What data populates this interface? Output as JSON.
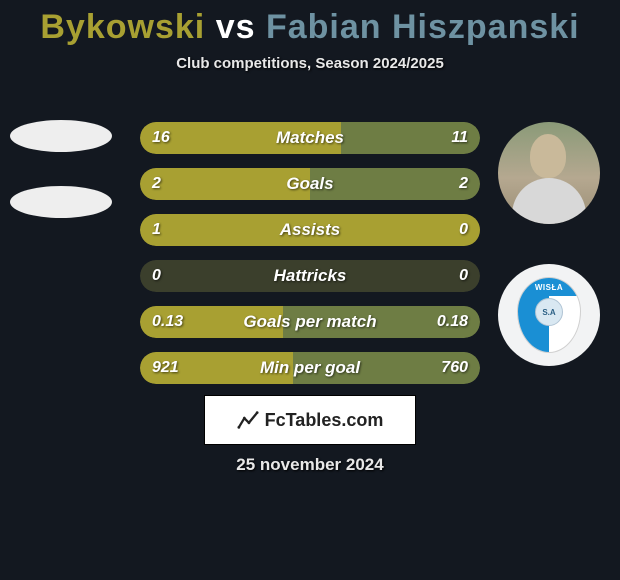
{
  "title": {
    "player1": "Bykowski",
    "vs": "vs",
    "player2": "Fabian Hiszpanski",
    "color_player1": "#a8a032",
    "color_player2": "#6e92a2"
  },
  "subtitle": "Club competitions, Season 2024/2025",
  "bars": {
    "bg_color_neutral": "#3b3f2c",
    "fill_left_color": "#a8a032",
    "fill_right_color": "#6e7d44",
    "rows": [
      {
        "label": "Matches",
        "left": "16",
        "right": "11",
        "left_pct": 59,
        "right_pct": 41
      },
      {
        "label": "Goals",
        "left": "2",
        "right": "2",
        "left_pct": 50,
        "right_pct": 50
      },
      {
        "label": "Assists",
        "left": "1",
        "right": "0",
        "left_pct": 100,
        "right_pct": 0
      },
      {
        "label": "Hattricks",
        "left": "0",
        "right": "0",
        "left_pct": 0,
        "right_pct": 0
      },
      {
        "label": "Goals per match",
        "left": "0.13",
        "right": "0.18",
        "left_pct": 42,
        "right_pct": 58
      },
      {
        "label": "Min per goal",
        "left": "921",
        "right": "760",
        "left_pct": 45,
        "right_pct": 55
      }
    ]
  },
  "footer": {
    "brand": "FcTables.com"
  },
  "date": "25 november 2024",
  "club_badge": {
    "top_text": "WISŁA",
    "ball_text": "S.A"
  },
  "background_color": "#131820"
}
